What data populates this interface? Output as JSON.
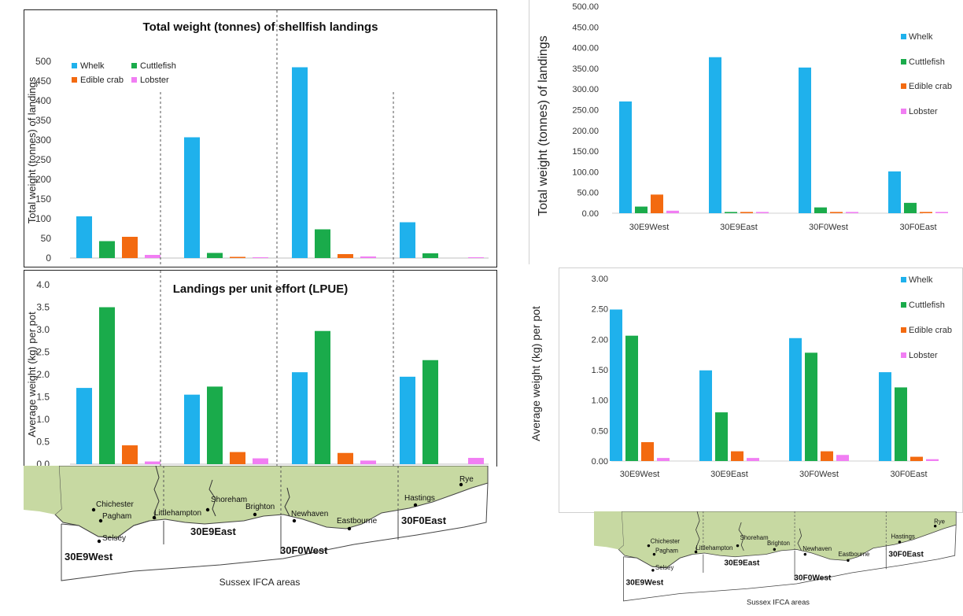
{
  "left": {
    "chart_data": [
      {
        "type": "bar",
        "title": "Total weight (tonnes) of shellfish landings",
        "ylabel": "Total weight (tonnes) of landings",
        "xlabel": "",
        "categories": [
          "30E9West",
          "30E9East",
          "30F0West",
          "30F0East"
        ],
        "ylim": [
          0,
          500
        ],
        "yticks": [
          "0",
          "50",
          "100",
          "150",
          "200",
          "250",
          "300",
          "350",
          "400",
          "450",
          "500"
        ],
        "legend_position": "top-left",
        "series": [
          {
            "name": "Whelk",
            "color": "#1fb1ec",
            "values": [
              106,
              307,
              485,
              91
            ]
          },
          {
            "name": "Cuttlefish",
            "color": "#1aab4b",
            "values": [
              43,
              13,
              73,
              12
            ]
          },
          {
            "name": "Edible crab",
            "color": "#f36a10",
            "values": [
              54,
              3,
              10,
              0
            ]
          },
          {
            "name": "Lobster",
            "color": "#f17ef3",
            "values": [
              8,
              2,
              4,
              2
            ]
          }
        ]
      },
      {
        "type": "bar",
        "title": "Landings per unit effort (LPUE)",
        "ylabel": "Average weight (kg) per pot",
        "xlabel": "",
        "categories": [
          "30E9West",
          "30E9East",
          "30F0West",
          "30F0East"
        ],
        "ylim": [
          0,
          4.0
        ],
        "yticks": [
          "0.0",
          "0.5",
          "1.0",
          "1.5",
          "2.0",
          "2.5",
          "3.0",
          "3.5",
          "4.0"
        ],
        "series": [
          {
            "name": "Whelk",
            "color": "#1fb1ec",
            "values": [
              1.7,
              1.55,
              2.05,
              1.95
            ]
          },
          {
            "name": "Cuttlefish",
            "color": "#1aab4b",
            "values": [
              3.5,
              1.73,
              2.97,
              2.32
            ]
          },
          {
            "name": "Edible crab",
            "color": "#f36a10",
            "values": [
              0.42,
              0.27,
              0.25,
              0
            ]
          },
          {
            "name": "Lobster",
            "color": "#f17ef3",
            "values": [
              0.06,
              0.13,
              0.08,
              0.14
            ]
          }
        ]
      }
    ],
    "map": {
      "caption": "Sussex IFCA areas",
      "areas": [
        "30E9West",
        "30E9East",
        "30F0West",
        "30F0East"
      ],
      "towns": [
        "Chichester",
        "Pagham",
        "Selsey",
        "Littlehampton",
        "Shoreham",
        "Brighton",
        "Newhaven",
        "Eastbourne",
        "Hastings",
        "Rye"
      ]
    }
  },
  "right": {
    "chart_data": [
      {
        "type": "bar",
        "title": "",
        "ylabel": "Total weight (tonnes) of landings",
        "xlabel": "",
        "categories": [
          "30E9West",
          "30E9East",
          "30F0West",
          "30F0East"
        ],
        "ylim": [
          0,
          500
        ],
        "yticks": [
          "0.00",
          "50.00",
          "100.00",
          "150.00",
          "200.00",
          "250.00",
          "300.00",
          "350.00",
          "400.00",
          "450.00",
          "500.00"
        ],
        "legend_position": "right",
        "series": [
          {
            "name": "Whelk",
            "color": "#1fb1ec",
            "values": [
              270,
              377,
              352,
              101
            ]
          },
          {
            "name": "Cuttlefish",
            "color": "#1aab4b",
            "values": [
              16,
              3,
              14,
              25
            ]
          },
          {
            "name": "Edible crab",
            "color": "#f36a10",
            "values": [
              45,
              3,
              3,
              3
            ]
          },
          {
            "name": "Lobster",
            "color": "#f17ef3",
            "values": [
              6,
              3,
              3,
              3
            ]
          }
        ]
      },
      {
        "type": "bar",
        "title": "",
        "ylabel": "Average weight (kg) per pot",
        "xlabel": "",
        "categories": [
          "30E9West",
          "30E9East",
          "30F0West",
          "30F0East"
        ],
        "ylim": [
          0,
          3.0
        ],
        "yticks": [
          "0.00",
          "0.50",
          "1.00",
          "1.50",
          "2.00",
          "2.50",
          "3.00"
        ],
        "legend_position": "right",
        "series": [
          {
            "name": "Whelk",
            "color": "#1fb1ec",
            "values": [
              2.49,
              1.49,
              2.02,
              1.46
            ]
          },
          {
            "name": "Cuttlefish",
            "color": "#1aab4b",
            "values": [
              2.06,
              0.8,
              1.78,
              1.21
            ]
          },
          {
            "name": "Edible crab",
            "color": "#f36a10",
            "values": [
              0.31,
              0.16,
              0.16,
              0.07
            ]
          },
          {
            "name": "Lobster",
            "color": "#f17ef3",
            "values": [
              0.05,
              0.05,
              0.1,
              0.03
            ]
          }
        ]
      }
    ],
    "map": {
      "caption": "Sussex IFCA areas",
      "areas": [
        "30E9West",
        "30E9East",
        "30F0West",
        "30F0East"
      ],
      "towns": [
        "Chichester",
        "Pagham",
        "Selsey",
        "Littlehampton",
        "Shoreham",
        "Brighton",
        "Newhaven",
        "Eastbourne",
        "Hastings",
        "Rye"
      ]
    }
  }
}
